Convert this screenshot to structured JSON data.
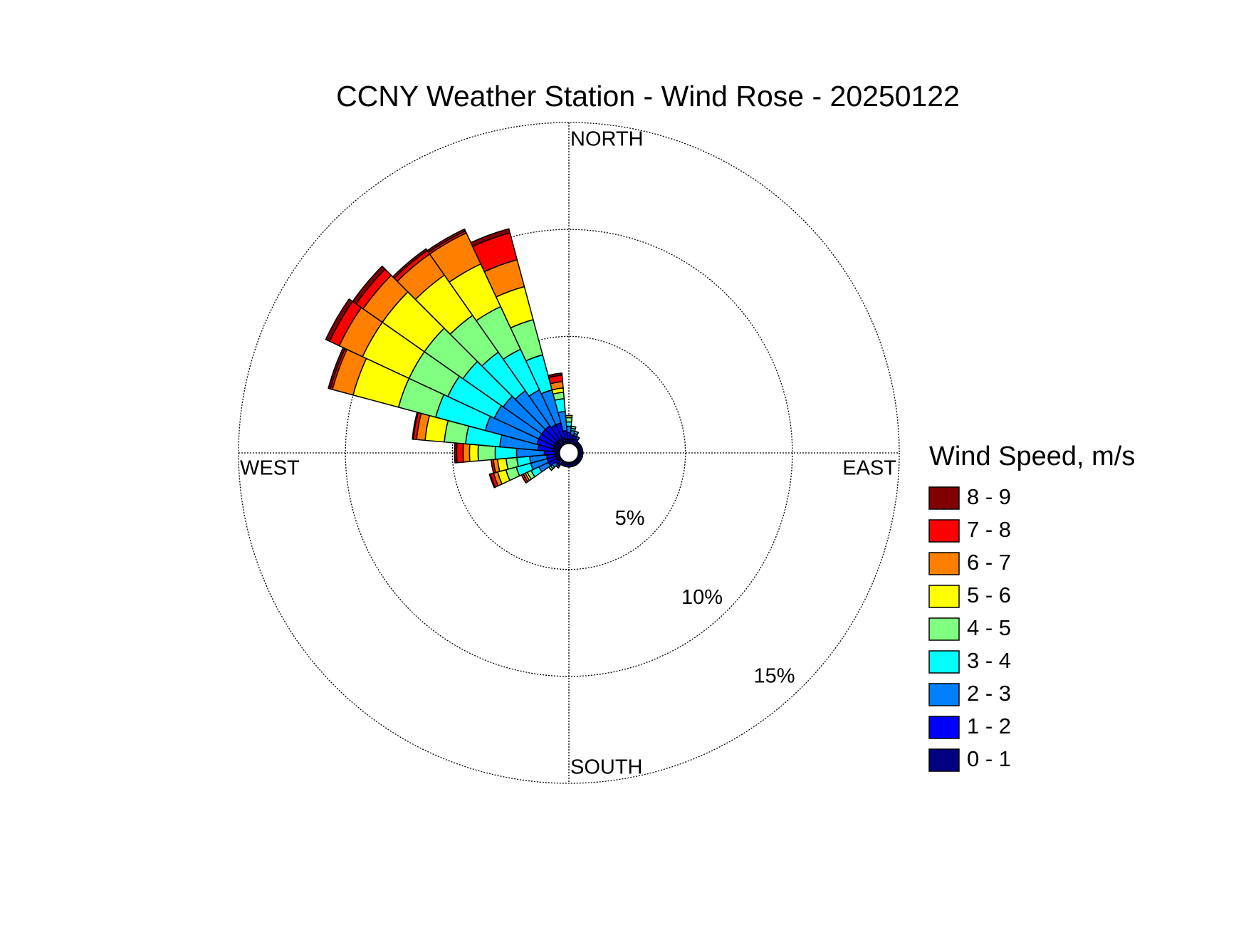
{
  "chart_data": {
    "type": "windrose",
    "title": "CCNY Weather Station - Wind Rose - 20250122",
    "direction_labels": [
      "NORTH",
      "EAST",
      "SOUTH",
      "WEST"
    ],
    "x": [
      0,
      10,
      20,
      30,
      40,
      50,
      60,
      70,
      80,
      90,
      100,
      110,
      120,
      130,
      140,
      150,
      160,
      170,
      180,
      190,
      200,
      210,
      220,
      230,
      240,
      250,
      260,
      270,
      280,
      290,
      300,
      310,
      320,
      330,
      340,
      350
    ],
    "ylim": [
      0,
      15
    ],
    "yticks": [
      {
        "value": 5,
        "label": "5%"
      },
      {
        "value": 10,
        "label": "10%"
      },
      {
        "value": 15,
        "label": "15%"
      }
    ],
    "grid": true,
    "legend_title": "Wind Speed, m/s",
    "legend_position": "right",
    "series": [
      {
        "name": "0 - 1",
        "color": "#000080",
        "values": [
          0.2,
          0.2,
          0.2,
          0.1,
          0.1,
          0.1,
          0.1,
          0.1,
          0.1,
          0.1,
          0.1,
          0.1,
          0.1,
          0.1,
          0.1,
          0.1,
          0.1,
          0.1,
          0.1,
          0.1,
          0.1,
          0.1,
          0.1,
          0.1,
          0.2,
          0.2,
          0.2,
          0.2,
          0.3,
          0.3,
          0.3,
          0.3,
          0.3,
          0.3,
          0.3,
          0.2
        ]
      },
      {
        "name": "1 - 2",
        "color": "#0000ff",
        "values": [
          0.3,
          0.2,
          0.2,
          0.2,
          0.1,
          0.1,
          0.1,
          0.1,
          0.1,
          0.1,
          0.1,
          0.1,
          0.1,
          0.1,
          0.1,
          0.1,
          0.1,
          0.1,
          0.1,
          0.1,
          0.1,
          0.1,
          0.2,
          0.2,
          0.4,
          0.4,
          0.4,
          0.5,
          0.7,
          0.8,
          0.8,
          0.8,
          0.8,
          0.7,
          0.7,
          0.4
        ]
      },
      {
        "name": "2 - 3",
        "color": "#0080ff",
        "values": [
          0.3,
          0.2,
          0.1,
          0.1,
          0,
          0,
          0,
          0,
          0,
          0,
          0,
          0,
          0,
          0,
          0,
          0,
          0,
          0,
          0,
          0,
          0,
          0,
          0.1,
          0.2,
          0.5,
          0.8,
          0.8,
          1.3,
          1.8,
          2.5,
          2.3,
          2.2,
          2.0,
          1.8,
          1.6,
          0.9
        ]
      },
      {
        "name": "3 - 4",
        "color": "#00ffff",
        "values": [
          0.2,
          0.1,
          0.1,
          0,
          0,
          0,
          0,
          0,
          0,
          0,
          0,
          0,
          0,
          0,
          0,
          0,
          0,
          0,
          0,
          0,
          0,
          0,
          0,
          0.1,
          0.4,
          0.7,
          0.6,
          1.0,
          1.6,
          2.4,
          2.4,
          2.3,
          2.2,
          2.1,
          1.7,
          0.6
        ]
      },
      {
        "name": "4 - 5",
        "color": "#80ff80",
        "values": [
          0.2,
          0.1,
          0,
          0,
          0,
          0,
          0,
          0,
          0,
          0,
          0,
          0,
          0,
          0,
          0,
          0,
          0,
          0,
          0,
          0,
          0,
          0,
          0,
          0.1,
          0.2,
          0.5,
          0.5,
          0.8,
          1.0,
          1.8,
          2.0,
          2.2,
          2.1,
          2.2,
          1.7,
          0.3
        ]
      },
      {
        "name": "5 - 6",
        "color": "#ffff00",
        "values": [
          0.1,
          0,
          0,
          0,
          0,
          0,
          0,
          0,
          0,
          0,
          0,
          0,
          0,
          0,
          0,
          0,
          0,
          0,
          0,
          0,
          0,
          0,
          0,
          0,
          0.1,
          0.4,
          0.4,
          0.4,
          0.9,
          2.2,
          2.4,
          2.4,
          2.3,
          2.2,
          1.6,
          0.2
        ]
      },
      {
        "name": "6 - 7",
        "color": "#ff8000",
        "values": [
          0,
          0,
          0,
          0,
          0,
          0,
          0,
          0,
          0,
          0,
          0,
          0,
          0,
          0,
          0,
          0,
          0,
          0,
          0,
          0,
          0,
          0,
          0,
          0,
          0.1,
          0.2,
          0.2,
          0.3,
          0.4,
          1.0,
          1.2,
          1.1,
          1.2,
          1.6,
          1.3,
          0.3
        ]
      },
      {
        "name": "7 - 8",
        "color": "#ff0000",
        "values": [
          0,
          0,
          0,
          0,
          0,
          0,
          0,
          0,
          0,
          0,
          0,
          0,
          0,
          0,
          0,
          0,
          0,
          0,
          0,
          0,
          0,
          0,
          0,
          0,
          0.1,
          0.15,
          0.1,
          0.3,
          0.15,
          0.1,
          0.5,
          0.4,
          0.2,
          0.1,
          1.3,
          0.3
        ]
      },
      {
        "name": "8 - 9",
        "color": "#800000",
        "values": [
          0,
          0,
          0,
          0,
          0,
          0,
          0,
          0,
          0,
          0,
          0,
          0,
          0,
          0,
          0,
          0,
          0,
          0,
          0,
          0,
          0,
          0,
          0,
          0,
          0,
          0.05,
          0,
          0.1,
          0.05,
          0.1,
          0.2,
          0.2,
          0.1,
          0.1,
          0.2,
          0.1
        ]
      }
    ]
  }
}
